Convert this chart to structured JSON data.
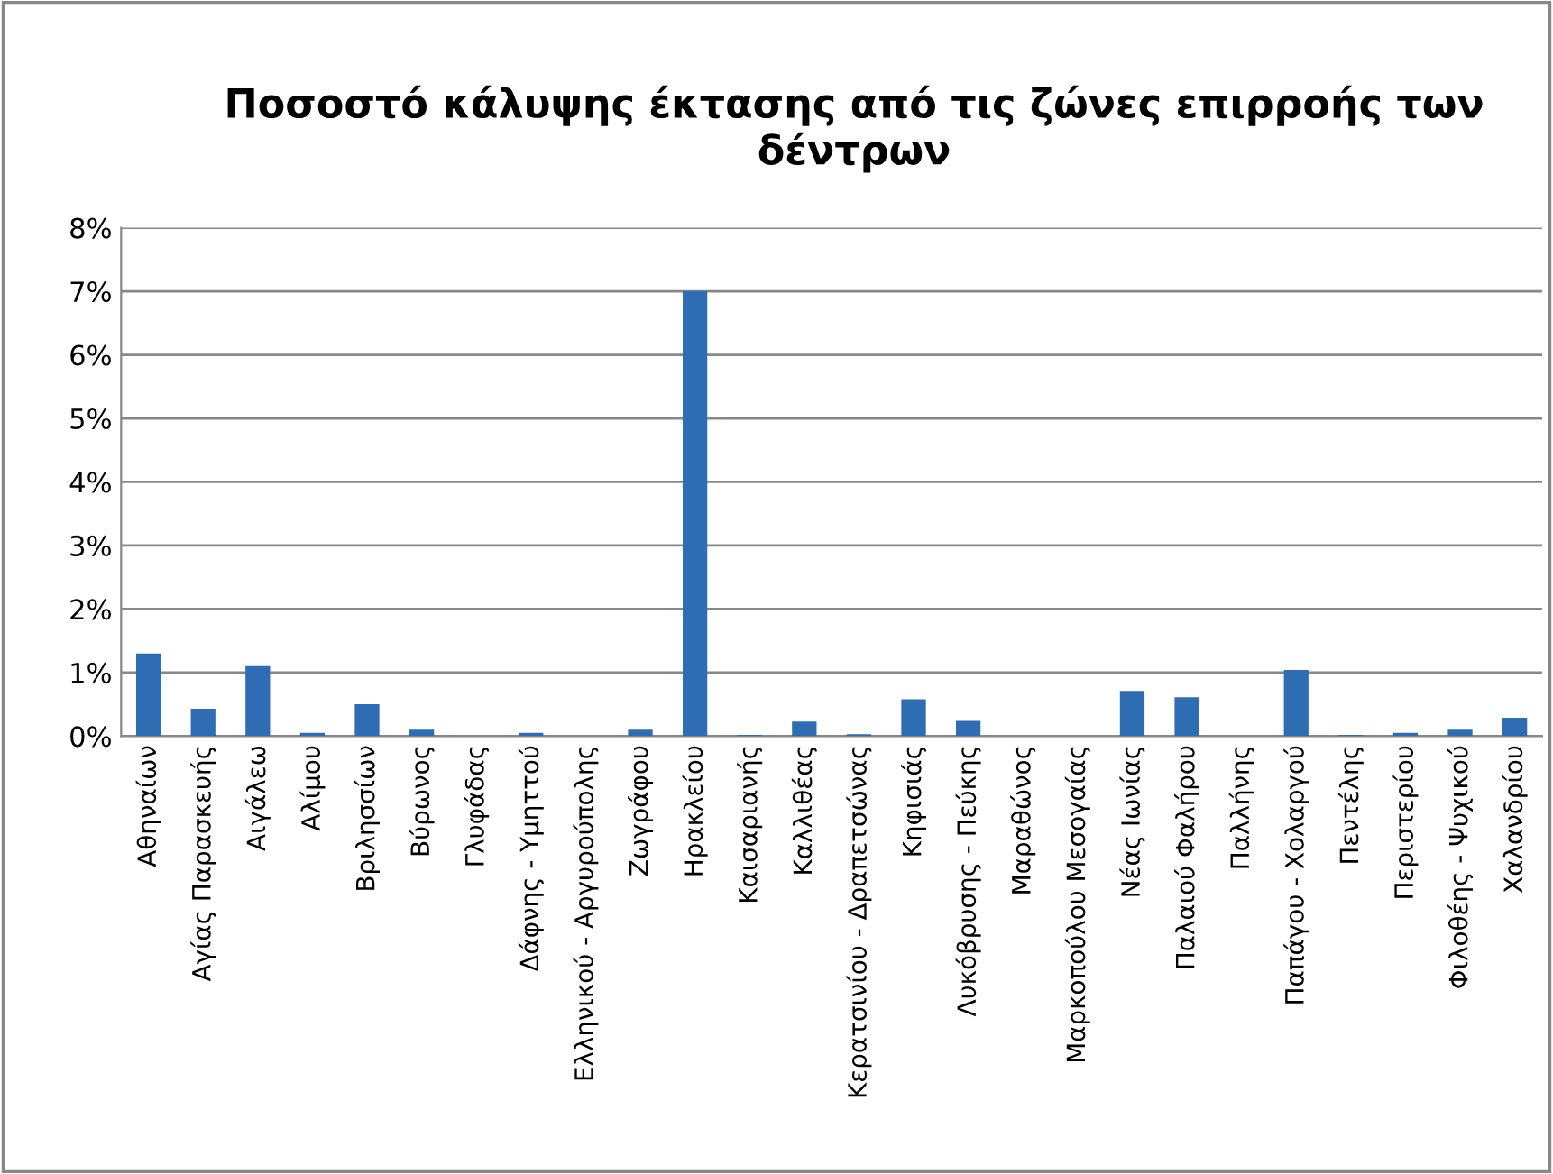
{
  "chart_data": {
    "type": "bar",
    "title": "Ποσοστό κάλυψης έκτασης από τις ζώνες επιρροής των δέντρων",
    "categories": [
      "Αθηναίων",
      "Αγίας Παρασκευής",
      "Αιγάλεω",
      "Αλίμου",
      "Βριλησσίων",
      "Βύρωνος",
      "Γλυφάδας",
      "Δάφνης - Υμηττού",
      "Ελληνικού - Αργυρούπολης",
      "Ζωγράφου",
      "Ηρακλείου",
      "Καισαριανής",
      "Καλλιθέας",
      "Κερατσινίου - Δραπετσώνας",
      "Κηφισιάς",
      "Λυκόβρυσης - Πεύκης",
      "Μαραθώνος",
      "Μαρκοπούλου Μεσογαίας",
      "Νέας Ιωνίας",
      "Παλαιού Φαλήρου",
      "Παλλήνης",
      "Παπάγου - Χολαργού",
      "Πεντέλης",
      "Περιστερίου",
      "Φιλοθέης - Ψυχικού",
      "Χαλανδρίου"
    ],
    "values": [
      1.3,
      0.43,
      1.1,
      0.05,
      0.5,
      0.1,
      0,
      0.05,
      0,
      0.1,
      7.0,
      0.02,
      0.23,
      0.03,
      0.58,
      0.24,
      0,
      0,
      0.71,
      0.61,
      0,
      1.04,
      0.02,
      0.05,
      0.1,
      0.29
    ],
    "color": "#2e6db4",
    "ylim": [
      0,
      8
    ],
    "yticks": [
      {
        "value": 0,
        "label": "0%"
      },
      {
        "value": 1,
        "label": "1%"
      },
      {
        "value": 2,
        "label": "2%"
      },
      {
        "value": 3,
        "label": "3%"
      },
      {
        "value": 4,
        "label": "4%"
      },
      {
        "value": 5,
        "label": "5%"
      },
      {
        "value": 6,
        "label": "6%"
      },
      {
        "value": 7,
        "label": "7%"
      },
      {
        "value": 8,
        "label": "8%"
      }
    ],
    "grid": "y",
    "legend": false
  }
}
